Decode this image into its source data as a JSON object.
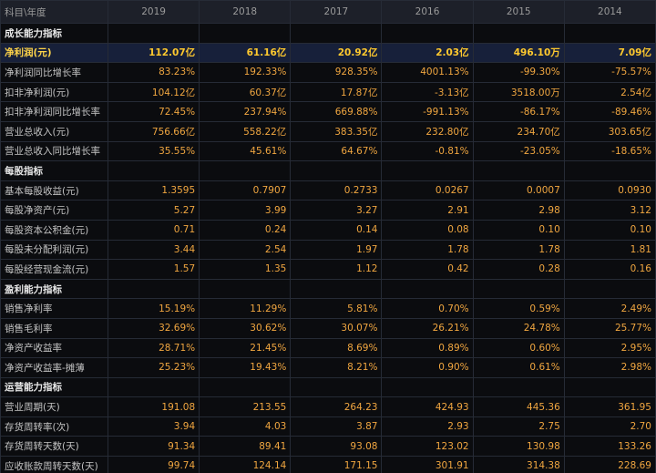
{
  "header": [
    "科目\\年度",
    "2019",
    "2018",
    "2017",
    "2016",
    "2015",
    "2014"
  ],
  "sections": [
    {
      "title": "成长能力指标",
      "rows": [
        {
          "label": "净利润(元)",
          "values": [
            "112.07亿",
            "61.16亿",
            "20.92亿",
            "2.03亿",
            "496.10万",
            "7.09亿"
          ]
        },
        {
          "label": "净利润同比增长率",
          "values": [
            "83.23%",
            "192.33%",
            "928.35%",
            "4001.13%",
            "-99.30%",
            "-75.57%"
          ]
        },
        {
          "label": "扣非净利润(元)",
          "values": [
            "104.12亿",
            "60.37亿",
            "17.87亿",
            "-3.13亿",
            "3518.00万",
            "2.54亿"
          ]
        },
        {
          "label": "扣非净利润同比增长率",
          "values": [
            "72.45%",
            "237.94%",
            "669.88%",
            "-991.13%",
            "-86.17%",
            "-89.46%"
          ]
        },
        {
          "label": "营业总收入(元)",
          "values": [
            "756.66亿",
            "558.22亿",
            "383.35亿",
            "232.80亿",
            "234.70亿",
            "303.65亿"
          ]
        },
        {
          "label": "营业总收入同比增长率",
          "values": [
            "35.55%",
            "45.61%",
            "64.67%",
            "-0.81%",
            "-23.05%",
            "-18.65%"
          ]
        }
      ]
    },
    {
      "title": "每股指标",
      "rows": [
        {
          "label": "基本每股收益(元)",
          "values": [
            "1.3595",
            "0.7907",
            "0.2733",
            "0.0267",
            "0.0007",
            "0.0930"
          ]
        },
        {
          "label": "每股净资产(元)",
          "values": [
            "5.27",
            "3.99",
            "3.27",
            "2.91",
            "2.98",
            "3.12"
          ]
        },
        {
          "label": "每股资本公积金(元)",
          "values": [
            "0.71",
            "0.24",
            "0.14",
            "0.08",
            "0.10",
            "0.10"
          ]
        },
        {
          "label": "每股未分配利润(元)",
          "values": [
            "3.44",
            "2.54",
            "1.97",
            "1.78",
            "1.78",
            "1.81"
          ]
        },
        {
          "label": "每股经营现金流(元)",
          "values": [
            "1.57",
            "1.35",
            "1.12",
            "0.42",
            "0.28",
            "0.16"
          ]
        }
      ]
    },
    {
      "title": "盈利能力指标",
      "rows": [
        {
          "label": "销售净利率",
          "values": [
            "15.19%",
            "11.29%",
            "5.81%",
            "0.70%",
            "0.59%",
            "2.49%"
          ]
        },
        {
          "label": "销售毛利率",
          "values": [
            "32.69%",
            "30.62%",
            "30.07%",
            "26.21%",
            "24.78%",
            "25.77%"
          ]
        },
        {
          "label": "净资产收益率",
          "values": [
            "28.71%",
            "21.45%",
            "8.69%",
            "0.89%",
            "0.60%",
            "2.95%"
          ]
        },
        {
          "label": "净资产收益率-摊薄",
          "values": [
            "25.23%",
            "19.43%",
            "8.21%",
            "0.90%",
            "0.61%",
            "2.98%"
          ]
        }
      ]
    },
    {
      "title": "运营能力指标",
      "rows": [
        {
          "label": "营业周期(天)",
          "values": [
            "191.08",
            "213.55",
            "264.23",
            "424.93",
            "445.36",
            "361.95"
          ]
        },
        {
          "label": "存货周转率(次)",
          "values": [
            "3.94",
            "4.03",
            "3.87",
            "2.93",
            "2.75",
            "2.70"
          ]
        },
        {
          "label": "存货周转天数(天)",
          "values": [
            "91.34",
            "89.41",
            "93.08",
            "123.02",
            "130.98",
            "133.26"
          ]
        },
        {
          "label": "应收账款周转天数(天)",
          "values": [
            "99.74",
            "124.14",
            "171.15",
            "301.91",
            "314.38",
            "228.69"
          ]
        }
      ]
    }
  ]
}
